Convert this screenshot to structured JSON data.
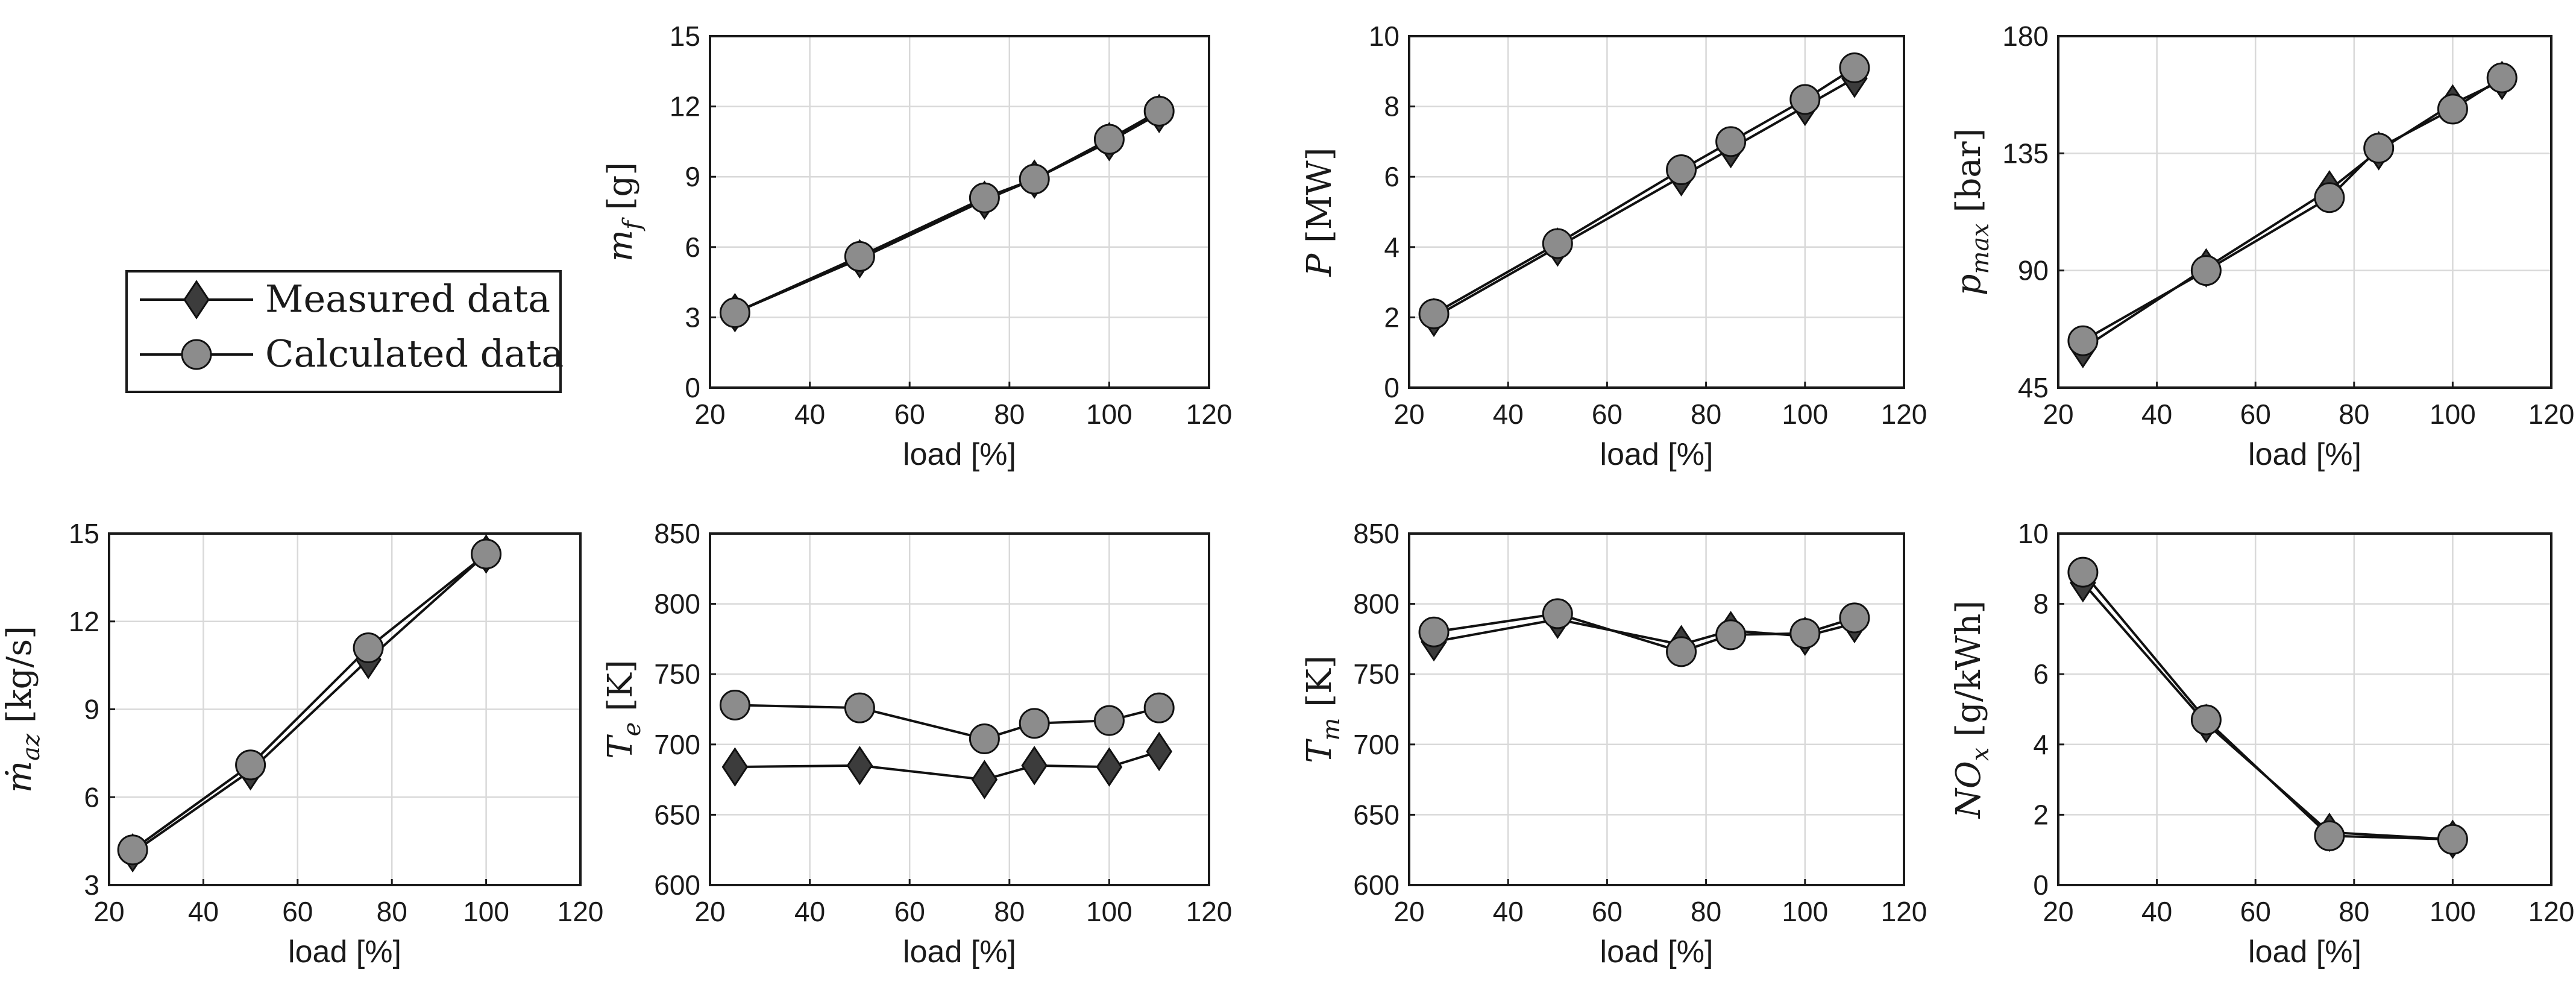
{
  "legend": {
    "entries": [
      {
        "label": "Measured data",
        "marker": "diamond",
        "color": "#3c3c3c"
      },
      {
        "label": "Calculated data",
        "marker": "circle",
        "color": "#8c8c8c"
      }
    ]
  },
  "chart_data": [
    {
      "type": "line",
      "id": "mf",
      "ylabel": {
        "main": "m",
        "sub": "f",
        "unit": "[g]"
      },
      "xlabel": "load [%]",
      "xlim": [
        20,
        120
      ],
      "xticks": [
        20,
        40,
        60,
        80,
        100,
        120
      ],
      "ylim": [
        0,
        15
      ],
      "yticks": [
        0,
        3,
        6,
        9,
        12,
        15
      ],
      "grid": true,
      "series": [
        {
          "name": "Measured data",
          "x": [
            25,
            50,
            75,
            85,
            100,
            110
          ],
          "y": [
            3.2,
            5.5,
            8.0,
            8.9,
            10.5,
            11.7
          ]
        },
        {
          "name": "Calculated data",
          "x": [
            25,
            50,
            75,
            85,
            100,
            110
          ],
          "y": [
            3.2,
            5.6,
            8.1,
            8.9,
            10.6,
            11.8
          ]
        }
      ]
    },
    {
      "type": "line",
      "id": "P",
      "ylabel": {
        "main": "P",
        "sub": "",
        "unit": "[MW]"
      },
      "xlabel": "load [%]",
      "xlim": [
        20,
        120
      ],
      "xticks": [
        20,
        40,
        60,
        80,
        100,
        120
      ],
      "ylim": [
        0,
        10
      ],
      "yticks": [
        0,
        2,
        4,
        6,
        8,
        10
      ],
      "grid": true,
      "series": [
        {
          "name": "Measured data",
          "x": [
            25,
            50,
            75,
            85,
            100,
            110
          ],
          "y": [
            2.0,
            4.0,
            6.0,
            6.8,
            8.0,
            8.8
          ]
        },
        {
          "name": "Calculated data",
          "x": [
            25,
            50,
            75,
            85,
            100,
            110
          ],
          "y": [
            2.1,
            4.1,
            6.2,
            7.0,
            8.2,
            9.1
          ]
        }
      ]
    },
    {
      "type": "line",
      "id": "pmax",
      "ylabel": {
        "main": "p",
        "sub": "max",
        "unit": "[bar]"
      },
      "xlabel": "load [%]",
      "xlim": [
        20,
        120
      ],
      "xticks": [
        20,
        40,
        60,
        80,
        100,
        120
      ],
      "ylim": [
        45,
        180
      ],
      "yticks": [
        45,
        90,
        135,
        180
      ],
      "grid": true,
      "series": [
        {
          "name": "Measured data",
          "x": [
            25,
            50,
            75,
            85,
            100,
            110
          ],
          "y": [
            60,
            91,
            121,
            136,
            154,
            163
          ]
        },
        {
          "name": "Calculated data",
          "x": [
            25,
            50,
            75,
            85,
            100,
            110
          ],
          "y": [
            63,
            90,
            118,
            137,
            152,
            164
          ]
        }
      ]
    },
    {
      "type": "line",
      "id": "maz",
      "ylabel": {
        "main": "ṁ",
        "sub": "az",
        "unit": "[kg/s]"
      },
      "xlabel": "load [%]",
      "xlim": [
        20,
        120
      ],
      "xticks": [
        20,
        40,
        60,
        80,
        100,
        120
      ],
      "ylim": [
        3,
        15
      ],
      "yticks": [
        3,
        6,
        9,
        12,
        15
      ],
      "grid": true,
      "series": [
        {
          "name": "Measured data",
          "x": [
            25,
            50,
            75,
            100
          ],
          "y": [
            4.1,
            6.9,
            10.7,
            14.3
          ]
        },
        {
          "name": "Calculated data",
          "x": [
            25,
            50,
            75,
            100
          ],
          "y": [
            4.2,
            7.1,
            11.1,
            14.3
          ]
        }
      ]
    },
    {
      "type": "line",
      "id": "Te",
      "ylabel": {
        "main": "T",
        "sub": "e",
        "unit": "[K]"
      },
      "xlabel": "load [%]",
      "xlim": [
        20,
        120
      ],
      "xticks": [
        20,
        40,
        60,
        80,
        100,
        120
      ],
      "ylim": [
        600,
        850
      ],
      "yticks": [
        600,
        650,
        700,
        750,
        800,
        850
      ],
      "grid": true,
      "series": [
        {
          "name": "Measured data",
          "x": [
            25,
            50,
            75,
            85,
            100,
            110
          ],
          "y": [
            684,
            685,
            675,
            685,
            684,
            695
          ]
        },
        {
          "name": "Calculated data",
          "x": [
            25,
            50,
            75,
            85,
            100,
            110
          ],
          "y": [
            728,
            726,
            704,
            715,
            717,
            726
          ]
        }
      ]
    },
    {
      "type": "line",
      "id": "Tm",
      "ylabel": {
        "main": "T",
        "sub": "m",
        "unit": "[K]"
      },
      "xlabel": "load [%]",
      "xlim": [
        20,
        120
      ],
      "xticks": [
        20,
        40,
        60,
        80,
        100,
        120
      ],
      "ylim": [
        600,
        850
      ],
      "yticks": [
        600,
        650,
        700,
        750,
        800,
        850
      ],
      "grid": true,
      "series": [
        {
          "name": "Measured data",
          "x": [
            25,
            50,
            75,
            85,
            100,
            110
          ],
          "y": [
            773,
            789,
            771,
            781,
            777,
            786
          ]
        },
        {
          "name": "Calculated data",
          "x": [
            25,
            50,
            75,
            85,
            100,
            110
          ],
          "y": [
            780,
            793,
            766,
            778,
            779,
            790
          ]
        }
      ]
    },
    {
      "type": "line",
      "id": "NOx",
      "ylabel": {
        "main": "NO",
        "sub": "x",
        "unit": "[g/kWh]"
      },
      "xlabel": "load [%]",
      "xlim": [
        20,
        120
      ],
      "xticks": [
        20,
        40,
        60,
        80,
        100,
        120
      ],
      "ylim": [
        0,
        10
      ],
      "yticks": [
        0,
        2,
        4,
        6,
        8,
        10
      ],
      "grid": true,
      "series": [
        {
          "name": "Measured data",
          "x": [
            25,
            50,
            75,
            100
          ],
          "y": [
            8.6,
            4.6,
            1.5,
            1.3
          ]
        },
        {
          "name": "Calculated data",
          "x": [
            25,
            50,
            75,
            100
          ],
          "y": [
            8.9,
            4.7,
            1.4,
            1.3
          ]
        }
      ]
    }
  ]
}
